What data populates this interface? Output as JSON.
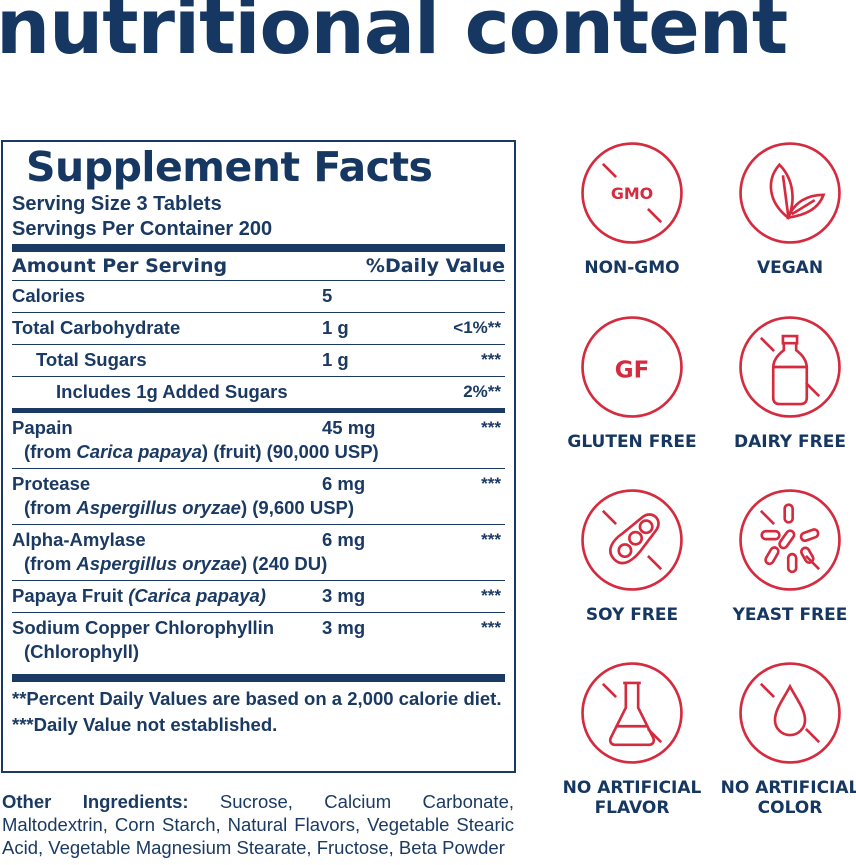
{
  "title": "nutritional content",
  "facts": {
    "heading": "Supplement Facts",
    "serving_size": "Serving Size 3 Tablets",
    "servings_per_container": "Servings Per Container 200",
    "header_amount": "Amount Per Serving",
    "header_dv": "%Daily Value",
    "rows": [
      {
        "name": "Calories",
        "amount": "5",
        "dv": ""
      },
      {
        "name": "Total Carbohydrate",
        "amount": "1 g",
        "dv": "<1%**"
      },
      {
        "name": "Total Sugars",
        "amount": "1 g",
        "dv": "***"
      },
      {
        "name": "Includes 1g Added Sugars",
        "amount": "",
        "dv": "2%**"
      }
    ],
    "ingredients": [
      {
        "name": "Papain",
        "source_pre": "(from ",
        "source_italic": "Carica papaya",
        "source_post": ") (fruit) (90,000 USP)",
        "amount": "45 mg",
        "dv": "***"
      },
      {
        "name": "Protease",
        "source_pre": "(from ",
        "source_italic": "Aspergillus oryzae",
        "source_post": ") (9,600 USP)",
        "amount": "6 mg",
        "dv": "***"
      },
      {
        "name": "Alpha-Amylase",
        "source_pre": "(from ",
        "source_italic": "Aspergillus oryzae",
        "source_post": ") (240 DU)",
        "amount": "6 mg",
        "dv": "***"
      },
      {
        "name": "Papaya Fruit ",
        "name_italic": "(Carica papaya)",
        "amount": "3 mg",
        "dv": "***"
      },
      {
        "name": "Sodium Copper Chlorophyllin",
        "source_pre": "(Chlorophyll)",
        "amount": "3 mg",
        "dv": "***"
      }
    ],
    "footnote1": "**Percent Daily Values are based on a 2,000 calorie diet.",
    "footnote2": "***Daily Value not established."
  },
  "other_ingredients": {
    "label": "Other Ingredients:",
    "text": " Sucrose, Calcium Carbonate, Maltodextrin, Corn Starch, Natural Flavors, Vegetable Stearic Acid, Vegetable Magnesium Stearate, Fructose, Beta Powder"
  },
  "badges": [
    {
      "label": "NON-GMO",
      "icon": "non-gmo-icon",
      "inner_text": "GMO"
    },
    {
      "label": "VEGAN",
      "icon": "leaf-icon"
    },
    {
      "label": "GLUTEN FREE",
      "icon": "gluten-free-icon",
      "inner_text": "GF"
    },
    {
      "label": "DAIRY FREE",
      "icon": "milk-bottle-icon"
    },
    {
      "label": "SOY FREE",
      "icon": "soybean-icon"
    },
    {
      "label": "YEAST FREE",
      "icon": "yeast-icon"
    },
    {
      "label": "NO ARTIFICIAL FLAVOR",
      "icon": "flask-icon"
    },
    {
      "label": "NO ARTIFICIAL COLOR",
      "icon": "drop-icon"
    }
  ],
  "colors": {
    "navy": "#1b3a63",
    "red": "#d42b3f"
  }
}
